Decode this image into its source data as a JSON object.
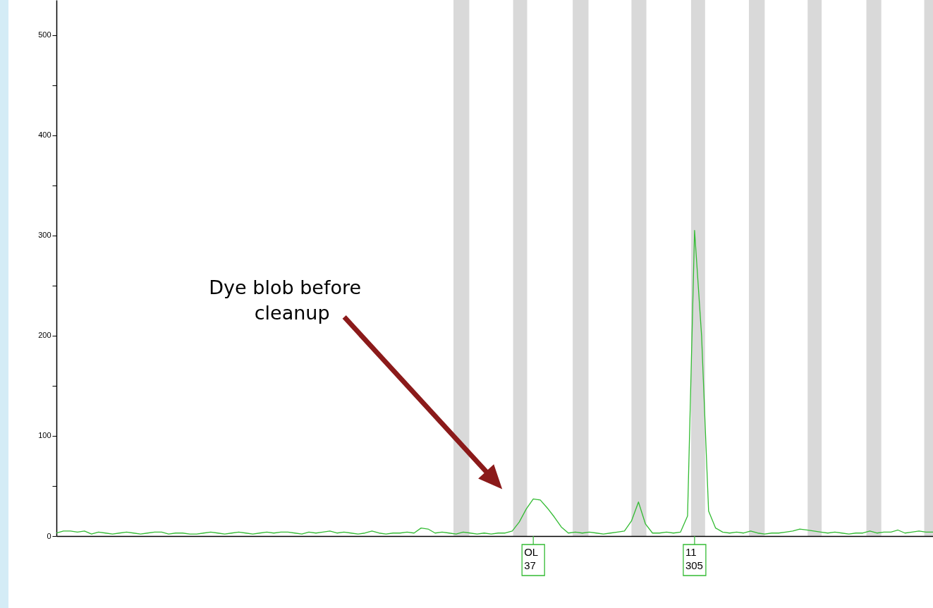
{
  "chart_data": {
    "type": "line",
    "categories": [
      null,
      null,
      null,
      null,
      null,
      null,
      null,
      null,
      null,
      null,
      null,
      null,
      null,
      null,
      null,
      null,
      null,
      null,
      null,
      null,
      null,
      null,
      null,
      null,
      null,
      null,
      null,
      null,
      null,
      null,
      null,
      null,
      null,
      null,
      null,
      null,
      null,
      null,
      null,
      null,
      null,
      null,
      null,
      null,
      null,
      null,
      null,
      null,
      null,
      null,
      null,
      null,
      null,
      null,
      null,
      null,
      null,
      null,
      null,
      null,
      null,
      null,
      null,
      null,
      null,
      null,
      null,
      null,
      null,
      null,
      null,
      null,
      null,
      null,
      null,
      null,
      null,
      null,
      null,
      null,
      null,
      null,
      null,
      null,
      null,
      null,
      null,
      null,
      null,
      null,
      null,
      null,
      null,
      null,
      null,
      null,
      null,
      null,
      null,
      null,
      null,
      null,
      null,
      null,
      null,
      null,
      null,
      null,
      null,
      null,
      null,
      null,
      null,
      null,
      null,
      null,
      null,
      null,
      null,
      null,
      null,
      null,
      null,
      null,
      null,
      null
    ],
    "series": [
      {
        "color": "#33bb33",
        "values": [
          3,
          5,
          5,
          4,
          5,
          2,
          4,
          3,
          2,
          3,
          4,
          3,
          2,
          3,
          4,
          4,
          2,
          3,
          3,
          2,
          2,
          3,
          4,
          3,
          2,
          3,
          4,
          3,
          2,
          3,
          4,
          3,
          4,
          4,
          3,
          2,
          4,
          3,
          4,
          5,
          3,
          4,
          3,
          2,
          3,
          5,
          3,
          2,
          3,
          3,
          4,
          3,
          8,
          7,
          3,
          4,
          3,
          2,
          4,
          3,
          2,
          3,
          2,
          3,
          3,
          5,
          14,
          27,
          37,
          36,
          28,
          19,
          9,
          3,
          4,
          3,
          4,
          3,
          2,
          3,
          4,
          5,
          15,
          34,
          12,
          3,
          3,
          4,
          3,
          4,
          20,
          305,
          200,
          25,
          8,
          4,
          3,
          4,
          3,
          5,
          3,
          2,
          3,
          3,
          4,
          5,
          7,
          6,
          5,
          4,
          3,
          4,
          3,
          2,
          3,
          3,
          5,
          3,
          4,
          4,
          6,
          3,
          4,
          5,
          4,
          4
        ],
        "value_labels": [
          null,
          null,
          null,
          null,
          null,
          null,
          null,
          null,
          null,
          null,
          null,
          null,
          null,
          null,
          null,
          null,
          null,
          null,
          null,
          null,
          null,
          null,
          null,
          null,
          null,
          null,
          null,
          null,
          null,
          null,
          null,
          null,
          null,
          null,
          null,
          null,
          null,
          null,
          null,
          null,
          null,
          null,
          null,
          null,
          null,
          null,
          null,
          null,
          null,
          null,
          null,
          null,
          null,
          null,
          null,
          null,
          null,
          null,
          null,
          null,
          null,
          null,
          null,
          null,
          null,
          null,
          null,
          null,
          "37",
          null,
          null,
          null,
          null,
          null,
          null,
          null,
          null,
          null,
          null,
          null,
          null,
          null,
          null,
          null,
          null,
          null,
          null,
          null,
          null,
          null,
          null,
          "305",
          null,
          null,
          null,
          null,
          null,
          null,
          null,
          null,
          null,
          null,
          null,
          null,
          null,
          null,
          null,
          null,
          null,
          null,
          null,
          null,
          null,
          null,
          null,
          null,
          null,
          null,
          null,
          null,
          null,
          null,
          null,
          null,
          null,
          null
        ]
      }
    ],
    "ylim": [
      0,
      535
    ],
    "yticks": [
      0,
      {
        "value": 50,
        "label": null
      },
      100,
      {
        "value": 150,
        "label": null
      },
      200,
      {
        "value": 250,
        "label": null
      },
      300,
      {
        "value": 350,
        "label": null
      },
      400,
      {
        "value": 450,
        "label": null
      },
      500
    ],
    "tick_labels": "y",
    "line_style": "solid",
    "annotations": [
      "Dye blob before\ncleanup",
      "OL",
      "11"
    ]
  }
}
